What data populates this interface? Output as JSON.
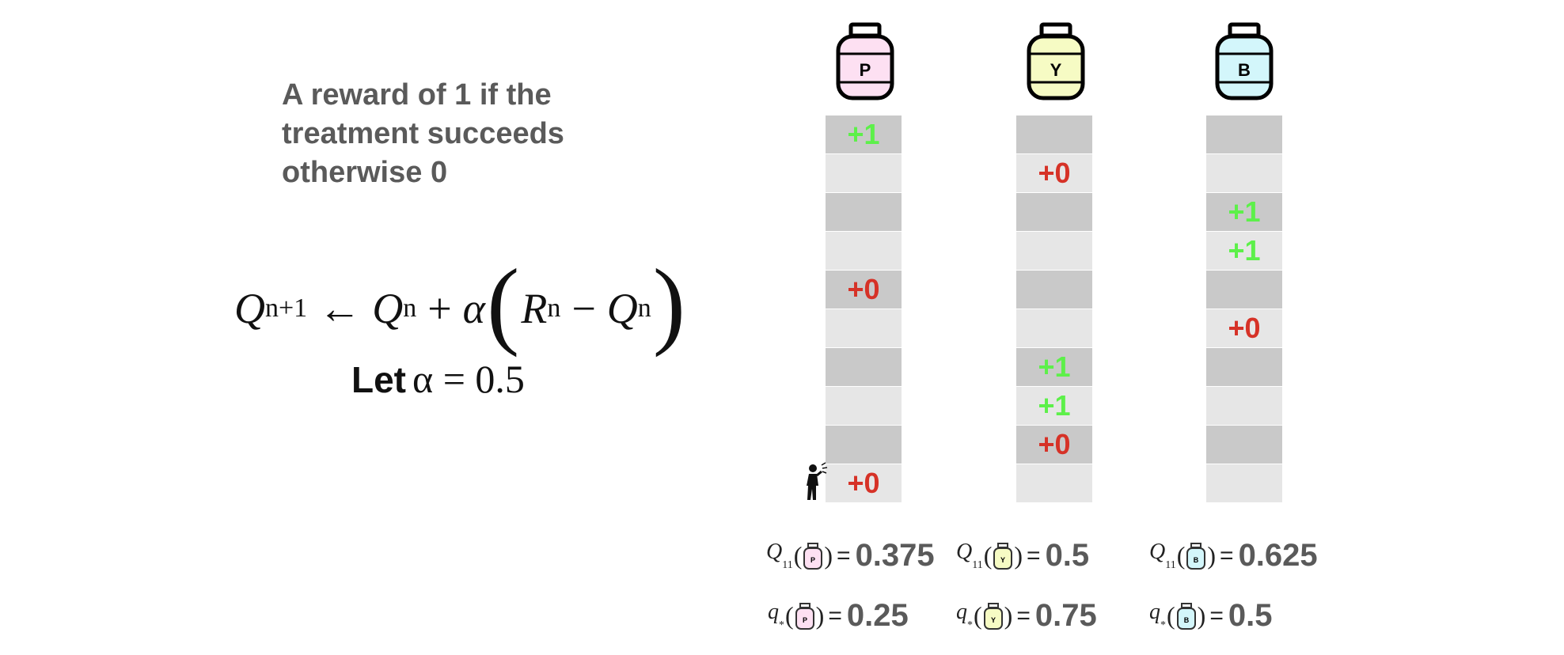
{
  "description": [
    "A reward of 1 if the",
    "treatment succeeds",
    "otherwise 0"
  ],
  "formula": {
    "lhs": "Q",
    "lhs_sub": "n+1",
    "arrow": "←",
    "term1": "Q",
    "term1_sub": "n",
    "plus": "+",
    "alpha": "α",
    "lparen": "(",
    "r": "R",
    "r_sub": "n",
    "minus": "−",
    "q": "Q",
    "q_sub": "n",
    "rparen": ")"
  },
  "let": {
    "word": "Let",
    "expr": "α = 0.5"
  },
  "colors": {
    "positive": "#5df04a",
    "negative": "#d63227",
    "cell_dark": "#c9c9c9",
    "cell_light": "#e6e6e6"
  },
  "bottles": [
    {
      "letter": "P",
      "color": "#fde0f2"
    },
    {
      "letter": "Y",
      "color": "#f6fbc4"
    },
    {
      "letter": "B",
      "color": "#d3f6fb"
    }
  ],
  "columns": [
    {
      "rewards": [
        "+1",
        "",
        "",
        "",
        "+0",
        "",
        "",
        "",
        "",
        "+0"
      ]
    },
    {
      "rewards": [
        "",
        "+0",
        "",
        "",
        "",
        "",
        "+1",
        "+1",
        "+0",
        ""
      ]
    },
    {
      "rewards": [
        "",
        "",
        "+1",
        "+1",
        "",
        "+0",
        "",
        "",
        "",
        ""
      ]
    }
  ],
  "person_icon": "person-shouting-icon",
  "estimates": {
    "symbol": "Q",
    "subscript": "11",
    "open": "(",
    "close": ")",
    "equals": "=",
    "values": [
      "0.375",
      "0.5",
      "0.625"
    ]
  },
  "true_values": {
    "symbol": "q",
    "subscript": "*",
    "open": "(",
    "close": ")",
    "equals": "=",
    "values": [
      "0.25",
      "0.75",
      "0.5"
    ]
  }
}
